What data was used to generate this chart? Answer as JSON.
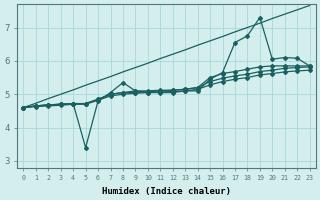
{
  "xlabel": "Humidex (Indice chaleur)",
  "x_ticks": [
    0,
    1,
    2,
    3,
    4,
    5,
    6,
    7,
    8,
    9,
    10,
    11,
    12,
    13,
    14,
    15,
    16,
    17,
    18,
    19,
    20,
    21,
    22,
    23
  ],
  "ylim": [
    2.8,
    7.7
  ],
  "xlim": [
    -0.5,
    23.5
  ],
  "background_color": "#d4eeee",
  "line_color": "#1a6060",
  "grid_color": "#aad8d8",
  "series": {
    "line_straight": [
      4.6,
      4.73,
      4.87,
      5.0,
      5.13,
      5.27,
      5.4,
      5.53,
      5.67,
      5.8,
      5.93,
      6.07,
      6.2,
      6.33,
      6.47,
      6.6,
      6.73,
      6.87,
      7.0,
      7.13,
      7.27,
      7.4,
      7.53,
      7.66
    ],
    "line_spike": [
      4.6,
      4.65,
      4.68,
      4.7,
      4.72,
      3.4,
      4.8,
      5.05,
      5.35,
      5.1,
      5.05,
      5.05,
      5.05,
      5.1,
      5.1,
      5.45,
      5.65,
      6.55,
      6.75,
      7.3,
      6.05,
      6.1,
      6.08,
      5.85
    ],
    "line_mid1": [
      4.6,
      4.65,
      4.68,
      4.7,
      4.72,
      4.72,
      4.85,
      5.0,
      5.05,
      5.05,
      5.08,
      5.1,
      5.12,
      5.15,
      5.2,
      5.5,
      5.62,
      5.68,
      5.75,
      5.82,
      5.85,
      5.85,
      5.85,
      5.85
    ],
    "line_mid2": [
      4.6,
      4.65,
      4.68,
      4.7,
      4.72,
      4.72,
      4.85,
      5.0,
      5.05,
      5.1,
      5.1,
      5.12,
      5.12,
      5.15,
      5.2,
      5.38,
      5.48,
      5.55,
      5.6,
      5.68,
      5.72,
      5.78,
      5.8,
      5.82
    ],
    "line_bot": [
      4.6,
      4.63,
      4.65,
      4.67,
      4.7,
      4.7,
      4.82,
      4.95,
      5.0,
      5.03,
      5.05,
      5.07,
      5.08,
      5.1,
      5.15,
      5.28,
      5.38,
      5.45,
      5.5,
      5.58,
      5.62,
      5.67,
      5.7,
      5.72
    ]
  }
}
